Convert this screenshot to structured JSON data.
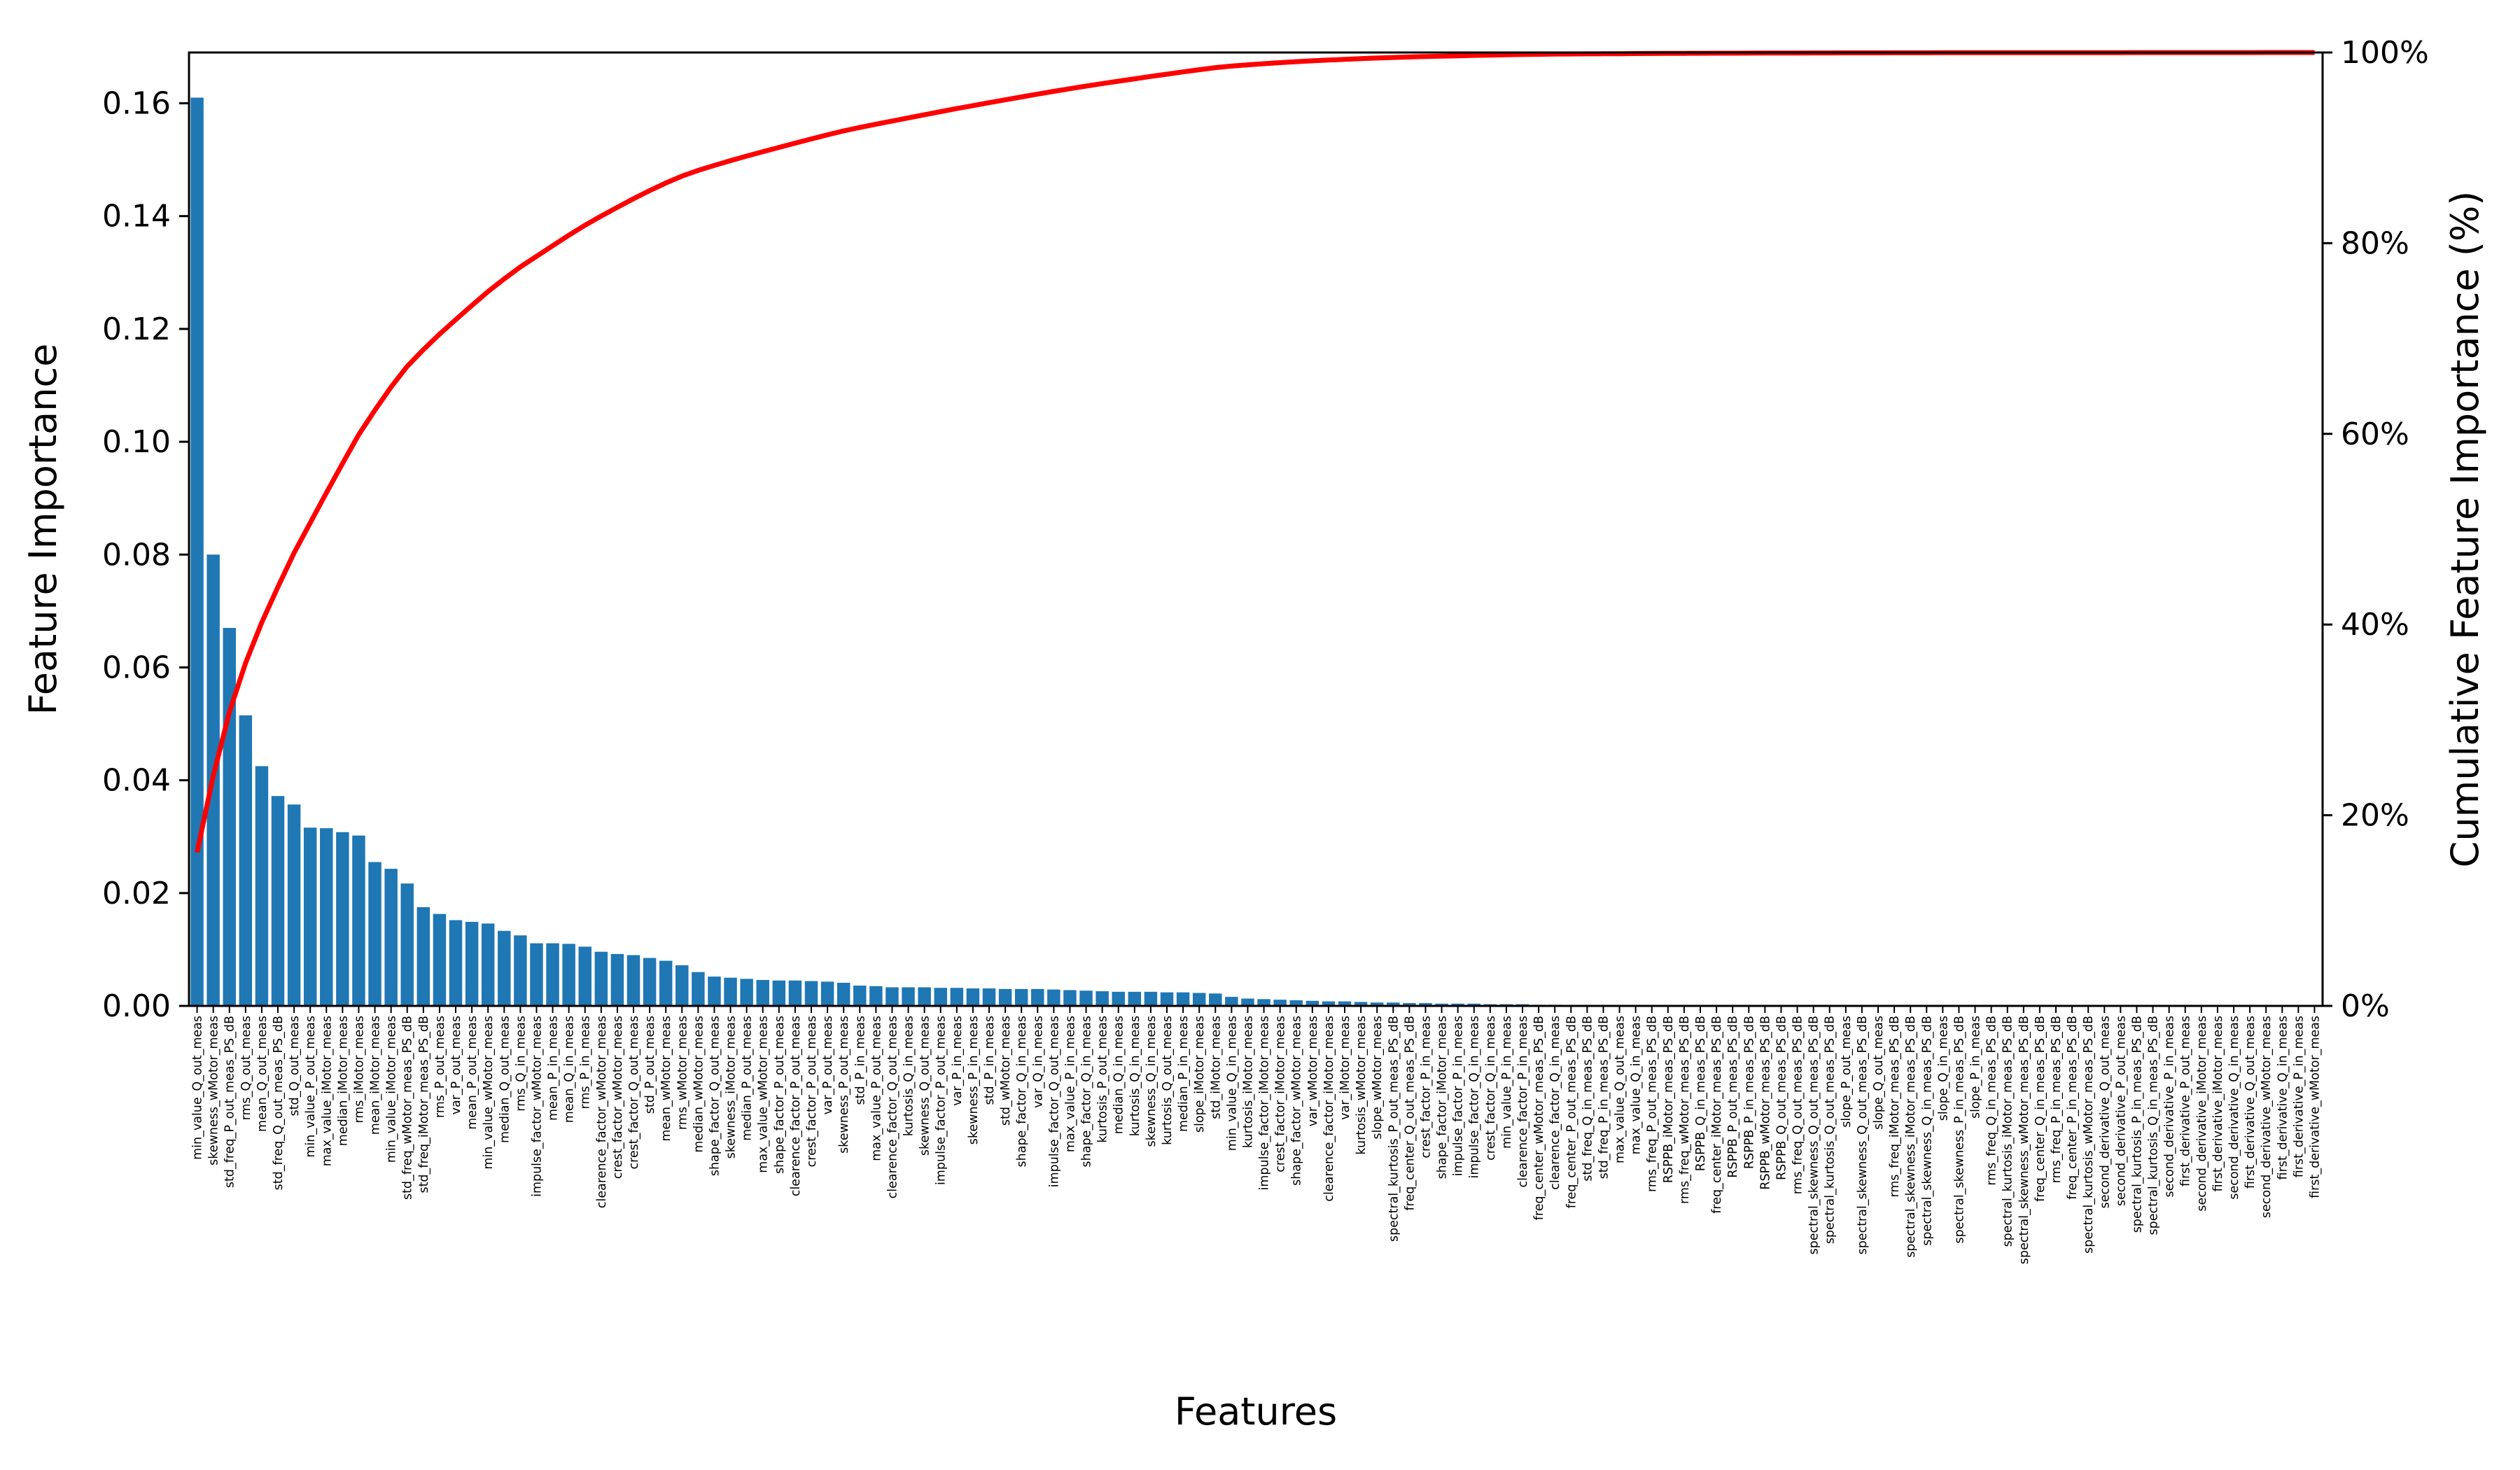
{
  "chart_data": {
    "type": "bar",
    "xlabel": "Features",
    "ylabel": "Feature Importance",
    "y2label": "Cumulative Feature Importance (%)",
    "ylim": [
      0,
      0.169
    ],
    "y2lim": [
      0,
      100
    ],
    "yticks": [
      "0.00",
      "0.02",
      "0.04",
      "0.06",
      "0.08",
      "0.10",
      "0.12",
      "0.14",
      "0.16"
    ],
    "y2ticks": [
      "0%",
      "20%",
      "40%",
      "60%",
      "80%",
      "100%"
    ],
    "bar_color": "#1f77b4",
    "line_color": "#ff0000",
    "categories": [
      "min_value_Q_out_meas",
      "skewness_wMotor_meas",
      "std_freq_P_out_meas_PS_dB",
      "rms_Q_out_meas",
      "mean_Q_out_meas",
      "std_freq_Q_out_meas_PS_dB",
      "std_Q_out_meas",
      "min_value_P_out_meas",
      "max_value_iMotor_meas",
      "median_iMotor_meas",
      "rms_iMotor_meas",
      "mean_iMotor_meas",
      "min_value_iMotor_meas",
      "std_freq_wMotor_meas_PS_dB",
      "std_freq_iMotor_meas_PS_dB",
      "rms_P_out_meas",
      "var_P_out_meas",
      "mean_P_out_meas",
      "min_value_wMotor_meas",
      "median_Q_out_meas",
      "rms_Q_in_meas",
      "impulse_factor_wMotor_meas",
      "mean_P_in_meas",
      "mean_Q_in_meas",
      "rms_P_in_meas",
      "clearence_factor_wMotor_meas",
      "crest_factor_wMotor_meas",
      "crest_factor_Q_out_meas",
      "std_P_out_meas",
      "mean_wMotor_meas",
      "rms_wMotor_meas",
      "median_wMotor_meas",
      "shape_factor_Q_out_meas",
      "skewness_iMotor_meas",
      "median_P_out_meas",
      "max_value_wMotor_meas",
      "shape_factor_P_out_meas",
      "clearence_factor_P_out_meas",
      "crest_factor_P_out_meas",
      "var_P_out_meas",
      "skewness_P_out_meas",
      "std_P_in_meas",
      "max_value_P_out_meas",
      "clearence_factor_Q_out_meas",
      "kurtosis_Q_in_meas",
      "skewness_Q_out_meas",
      "impulse_factor_P_out_meas",
      "var_P_in_meas",
      "skewness_P_in_meas",
      "std_P_in_meas",
      "std_wMotor_meas",
      "shape_factor_Q_in_meas",
      "var_Q_in_meas",
      "impulse_factor_Q_out_meas",
      "max_value_P_in_meas",
      "shape_factor_Q_in_meas",
      "kurtosis_P_out_meas",
      "median_Q_in_meas",
      "kurtosis_Q_in_meas",
      "skewness_Q_in_meas",
      "kurtosis_Q_out_meas",
      "median_P_in_meas",
      "slope_iMotor_meas",
      "std_iMotor_meas",
      "min_value_Q_in_meas",
      "kurtosis_iMotor_meas",
      "impulse_factor_iMotor_meas",
      "crest_factor_iMotor_meas",
      "shape_factor_wMotor_meas",
      "var_wMotor_meas",
      "clearence_factor_iMotor_meas",
      "var_iMotor_meas",
      "kurtosis_wMotor_meas",
      "slope_wMotor_meas",
      "spectral_kurtosis_P_out_meas_PS_dB",
      "freq_center_Q_out_meas_PS_dB",
      "crest_factor_P_in_meas",
      "shape_factor_iMotor_meas",
      "impulse_factor_P_in_meas",
      "impulse_factor_Q_in_meas",
      "crest_factor_Q_in_meas",
      "min_value_P_in_meas",
      "clearence_factor_P_in_meas",
      "freq_center_wMotor_meas_PS_dB",
      "clearence_factor_Q_in_meas",
      "freq_center_P_out_meas_PS_dB",
      "std_freq_Q_in_meas_PS_dB",
      "std_freq_P_in_meas_PS_dB",
      "max_value_Q_out_meas",
      "max_value_Q_in_meas",
      "rms_freq_P_out_meas_PS_dB",
      "RSPPB_iMotor_meas_PS_dB",
      "rms_freq_wMotor_meas_PS_dB",
      "RSPPB_Q_in_meas_PS_dB",
      "freq_center_iMotor_meas_PS_dB",
      "RSPPB_P_out_meas_PS_dB",
      "RSPPB_P_in_meas_PS_dB",
      "RSPPB_wMotor_meas_PS_dB",
      "RSPPB_Q_out_meas_PS_dB",
      "rms_freq_Q_out_meas_PS_dB",
      "spectral_skewness_Q_out_meas_PS_dB",
      "spectral_kurtosis_Q_out_meas_PS_dB",
      "slope_P_out_meas",
      "spectral_skewness_Q_out_meas_PS_dB",
      "slope_Q_out_meas",
      "rms_freq_iMotor_meas_PS_dB",
      "spectral_skewness_iMotor_meas_PS_dB",
      "spectral_skewness_Q_in_meas_PS_dB",
      "slope_Q_in_meas",
      "spectral_skewness_P_in_meas_PS_dB",
      "slope_P_in_meas",
      "rms_freq_Q_in_meas_PS_dB",
      "spectral_kurtosis_iMotor_meas_PS_dB",
      "spectral_skewness_wMotor_meas_PS_dB",
      "freq_center_Q_in_meas_PS_dB",
      "rms_freq_P_in_meas_PS_dB",
      "freq_center_P_in_meas_PS_dB",
      "spectral_kurtosis_wMotor_meas_PS_dB",
      "second_derivative_Q_out_meas",
      "second_derivative_P_out_meas",
      "spectral_kurtosis_P_in_meas_PS_dB",
      "spectral_kurtosis_Q_in_meas_PS_dB",
      "second_derivative_P_in_meas",
      "first_derivative_P_out_meas",
      "second_derivative_iMotor_meas",
      "first_derivative_iMotor_meas",
      "second_derivative_Q_in_meas",
      "first_derivative_Q_out_meas",
      "second_derivative_wMotor_meas",
      "first_derivative_Q_in_meas",
      "first_derivative_P_in_meas",
      "first_derivative_wMotor_meas"
    ],
    "values": [
      0.161,
      0.08,
      0.067,
      0.0515,
      0.0425,
      0.0372,
      0.0357,
      0.0316,
      0.0315,
      0.0308,
      0.0302,
      0.0255,
      0.0243,
      0.0217,
      0.0175,
      0.0163,
      0.0152,
      0.0149,
      0.0146,
      0.0133,
      0.0125,
      0.0111,
      0.0111,
      0.011,
      0.0105,
      0.0096,
      0.0092,
      0.009,
      0.0085,
      0.008,
      0.0072,
      0.006,
      0.0052,
      0.005,
      0.0048,
      0.0046,
      0.0045,
      0.0045,
      0.0044,
      0.0043,
      0.0041,
      0.0036,
      0.0035,
      0.0033,
      0.0033,
      0.0033,
      0.0032,
      0.0032,
      0.0031,
      0.0031,
      0.003,
      0.003,
      0.003,
      0.0029,
      0.0028,
      0.0027,
      0.0026,
      0.0025,
      0.0025,
      0.0025,
      0.0024,
      0.0024,
      0.0023,
      0.0022,
      0.0016,
      0.0013,
      0.0012,
      0.0011,
      0.001,
      0.0009,
      0.0008,
      0.0008,
      0.0007,
      0.0006,
      0.0006,
      0.0005,
      0.0005,
      0.0004,
      0.0004,
      0.0004,
      0.0003,
      0.0003,
      0.0003,
      0.0002,
      0.0002,
      0.00015,
      0.00015,
      0.0001,
      0.0001,
      0.0001,
      8e-05,
      8e-05,
      7e-05,
      7e-05,
      6e-05,
      6e-05,
      5e-05,
      5e-05,
      5e-05,
      4e-05,
      4e-05,
      4e-05,
      3e-05,
      3e-05,
      3e-05,
      3e-05,
      2e-05,
      2e-05,
      2e-05,
      2e-05,
      2e-05,
      1e-05,
      1e-05,
      1e-05,
      1e-05,
      1e-05,
      1e-05,
      1e-05,
      1e-05,
      1e-05,
      1e-05,
      1e-05,
      1e-05,
      1e-05,
      1e-05,
      1e-05,
      1e-05,
      1e-05,
      1e-05,
      1e-05,
      1e-05,
      1e-05
    ]
  }
}
